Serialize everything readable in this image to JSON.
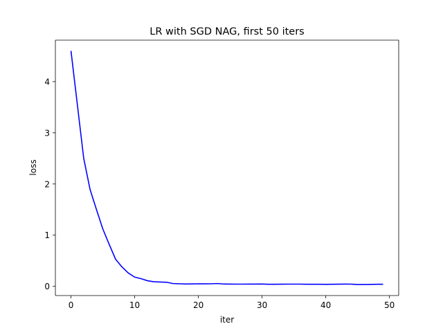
{
  "chart_data": {
    "type": "line",
    "title": "LR with SGD NAG, first 50 iters",
    "xlabel": "iter",
    "ylabel": "loss",
    "xlim": [
      -2.45,
      51.45
    ],
    "ylim": [
      -0.18,
      4.81
    ],
    "grid": false,
    "xticks": [
      0,
      10,
      20,
      30,
      40,
      50
    ],
    "yticks": [
      0,
      1,
      2,
      3,
      4
    ],
    "xtick_labels": [
      "0",
      "10",
      "20",
      "30",
      "40",
      "50"
    ],
    "ytick_labels": [
      "0",
      "1",
      "2",
      "3",
      "4"
    ],
    "series": [
      {
        "color": "#0000ff",
        "x": [
          0,
          1,
          2,
          3,
          4,
          5,
          6,
          7,
          8,
          9,
          10,
          11,
          12,
          13,
          14,
          15,
          16,
          17,
          18,
          19,
          20,
          21,
          22,
          23,
          24,
          25,
          26,
          27,
          28,
          29,
          30,
          31,
          32,
          33,
          34,
          35,
          36,
          37,
          38,
          39,
          40,
          41,
          42,
          43,
          44,
          45,
          46,
          47,
          48,
          49
        ],
        "y": [
          4.6,
          3.55,
          2.5,
          1.89,
          1.5,
          1.12,
          0.82,
          0.53,
          0.38,
          0.26,
          0.18,
          0.15,
          0.11,
          0.09,
          0.085,
          0.08,
          0.055,
          0.05,
          0.045,
          0.048,
          0.05,
          0.049,
          0.05,
          0.055,
          0.045,
          0.044,
          0.043,
          0.043,
          0.044,
          0.044,
          0.045,
          0.04,
          0.041,
          0.042,
          0.043,
          0.043,
          0.043,
          0.041,
          0.04,
          0.04,
          0.039,
          0.04,
          0.042,
          0.044,
          0.043,
          0.035,
          0.036,
          0.037,
          0.04,
          0.041
        ]
      }
    ]
  }
}
